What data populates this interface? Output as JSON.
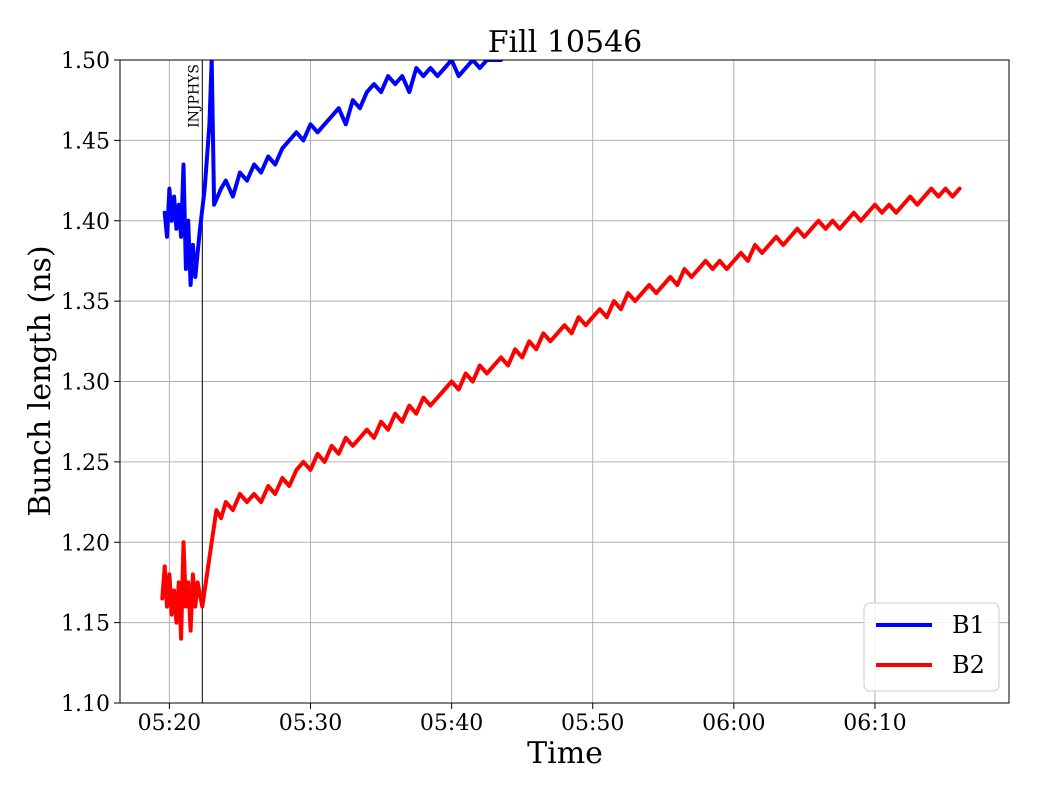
{
  "chart_data": {
    "type": "line",
    "title": "Fill 10546",
    "xlabel": "Time",
    "ylabel": "Bunch length (ns)",
    "xlim": [
      "05:16:30",
      "06:19:30"
    ],
    "ylim": [
      1.1,
      1.5
    ],
    "x_ticks": [
      "05:20",
      "05:30",
      "05:40",
      "05:50",
      "06:00",
      "06:10"
    ],
    "y_ticks": [
      "1.10",
      "1.15",
      "1.20",
      "1.25",
      "1.30",
      "1.35",
      "1.40",
      "1.45",
      "1.50"
    ],
    "grid": true,
    "legend": {
      "position": "bottom-right"
    },
    "annotations": [
      {
        "text": "INJPHYS",
        "x": "05:22:20"
      }
    ],
    "series": [
      {
        "name": "B1",
        "color": "#0000ff",
        "points": [
          [
            "05:19:40",
            1.405
          ],
          [
            "05:19:50",
            1.39
          ],
          [
            "05:20:00",
            1.42
          ],
          [
            "05:20:10",
            1.4
          ],
          [
            "05:20:20",
            1.415
          ],
          [
            "05:20:30",
            1.395
          ],
          [
            "05:20:40",
            1.41
          ],
          [
            "05:20:50",
            1.39
          ],
          [
            "05:21:00",
            1.435
          ],
          [
            "05:21:10",
            1.37
          ],
          [
            "05:21:20",
            1.4
          ],
          [
            "05:21:30",
            1.36
          ],
          [
            "05:21:40",
            1.385
          ],
          [
            "05:21:50",
            1.365
          ],
          [
            "05:22:00",
            1.38
          ],
          [
            "05:22:10",
            1.395
          ],
          [
            "05:22:30",
            1.42
          ],
          [
            "05:22:50",
            1.46
          ],
          [
            "05:23:00",
            1.5
          ],
          [
            "05:23:10",
            1.41
          ],
          [
            "05:23:40",
            1.42
          ],
          [
            "05:24:00",
            1.425
          ],
          [
            "05:24:30",
            1.415
          ],
          [
            "05:25:00",
            1.43
          ],
          [
            "05:25:30",
            1.425
          ],
          [
            "05:26:00",
            1.435
          ],
          [
            "05:26:30",
            1.43
          ],
          [
            "05:27:00",
            1.44
          ],
          [
            "05:27:30",
            1.435
          ],
          [
            "05:28:00",
            1.445
          ],
          [
            "05:28:30",
            1.45
          ],
          [
            "05:29:00",
            1.455
          ],
          [
            "05:29:30",
            1.45
          ],
          [
            "05:30:00",
            1.46
          ],
          [
            "05:30:30",
            1.455
          ],
          [
            "05:31:00",
            1.46
          ],
          [
            "05:31:30",
            1.465
          ],
          [
            "05:32:00",
            1.47
          ],
          [
            "05:32:30",
            1.46
          ],
          [
            "05:33:00",
            1.475
          ],
          [
            "05:33:30",
            1.47
          ],
          [
            "05:34:00",
            1.48
          ],
          [
            "05:34:30",
            1.485
          ],
          [
            "05:35:00",
            1.48
          ],
          [
            "05:35:30",
            1.49
          ],
          [
            "05:36:00",
            1.485
          ],
          [
            "05:36:30",
            1.49
          ],
          [
            "05:37:00",
            1.48
          ],
          [
            "05:37:30",
            1.495
          ],
          [
            "05:38:00",
            1.49
          ],
          [
            "05:38:30",
            1.495
          ],
          [
            "05:39:00",
            1.49
          ],
          [
            "05:39:30",
            1.495
          ],
          [
            "05:40:00",
            1.5
          ],
          [
            "05:40:30",
            1.49
          ],
          [
            "05:41:00",
            1.495
          ],
          [
            "05:41:30",
            1.5
          ],
          [
            "05:42:00",
            1.495
          ],
          [
            "05:42:30",
            1.5
          ],
          [
            "05:43:00",
            1.5
          ],
          [
            "05:43:30",
            1.5
          ]
        ]
      },
      {
        "name": "B2",
        "color": "#ff0000",
        "points": [
          [
            "05:19:30",
            1.165
          ],
          [
            "05:19:40",
            1.185
          ],
          [
            "05:19:50",
            1.16
          ],
          [
            "05:20:00",
            1.18
          ],
          [
            "05:20:10",
            1.155
          ],
          [
            "05:20:20",
            1.17
          ],
          [
            "05:20:30",
            1.15
          ],
          [
            "05:20:40",
            1.175
          ],
          [
            "05:20:50",
            1.14
          ],
          [
            "05:21:00",
            1.2
          ],
          [
            "05:21:10",
            1.16
          ],
          [
            "05:21:20",
            1.175
          ],
          [
            "05:21:30",
            1.145
          ],
          [
            "05:21:40",
            1.18
          ],
          [
            "05:21:50",
            1.16
          ],
          [
            "05:22:00",
            1.175
          ],
          [
            "05:22:20",
            1.16
          ],
          [
            "05:23:20",
            1.22
          ],
          [
            "05:23:40",
            1.215
          ],
          [
            "05:24:00",
            1.225
          ],
          [
            "05:24:30",
            1.22
          ],
          [
            "05:25:00",
            1.23
          ],
          [
            "05:25:30",
            1.225
          ],
          [
            "05:26:00",
            1.23
          ],
          [
            "05:26:30",
            1.225
          ],
          [
            "05:27:00",
            1.235
          ],
          [
            "05:27:30",
            1.23
          ],
          [
            "05:28:00",
            1.24
          ],
          [
            "05:28:30",
            1.235
          ],
          [
            "05:29:00",
            1.245
          ],
          [
            "05:29:30",
            1.25
          ],
          [
            "05:30:00",
            1.245
          ],
          [
            "05:30:30",
            1.255
          ],
          [
            "05:31:00",
            1.25
          ],
          [
            "05:31:30",
            1.26
          ],
          [
            "05:32:00",
            1.255
          ],
          [
            "05:32:30",
            1.265
          ],
          [
            "05:33:00",
            1.26
          ],
          [
            "05:33:30",
            1.265
          ],
          [
            "05:34:00",
            1.27
          ],
          [
            "05:34:30",
            1.265
          ],
          [
            "05:35:00",
            1.275
          ],
          [
            "05:35:30",
            1.27
          ],
          [
            "05:36:00",
            1.28
          ],
          [
            "05:36:30",
            1.275
          ],
          [
            "05:37:00",
            1.285
          ],
          [
            "05:37:30",
            1.28
          ],
          [
            "05:38:00",
            1.29
          ],
          [
            "05:38:30",
            1.285
          ],
          [
            "05:39:00",
            1.29
          ],
          [
            "05:39:30",
            1.295
          ],
          [
            "05:40:00",
            1.3
          ],
          [
            "05:40:30",
            1.295
          ],
          [
            "05:41:00",
            1.305
          ],
          [
            "05:41:30",
            1.3
          ],
          [
            "05:42:00",
            1.31
          ],
          [
            "05:42:30",
            1.305
          ],
          [
            "05:43:00",
            1.31
          ],
          [
            "05:43:30",
            1.315
          ],
          [
            "05:44:00",
            1.31
          ],
          [
            "05:44:30",
            1.32
          ],
          [
            "05:45:00",
            1.315
          ],
          [
            "05:45:30",
            1.325
          ],
          [
            "05:46:00",
            1.32
          ],
          [
            "05:46:30",
            1.33
          ],
          [
            "05:47:00",
            1.325
          ],
          [
            "05:47:30",
            1.33
          ],
          [
            "05:48:00",
            1.335
          ],
          [
            "05:48:30",
            1.33
          ],
          [
            "05:49:00",
            1.34
          ],
          [
            "05:49:30",
            1.335
          ],
          [
            "05:50:00",
            1.34
          ],
          [
            "05:50:30",
            1.345
          ],
          [
            "05:51:00",
            1.34
          ],
          [
            "05:51:30",
            1.35
          ],
          [
            "05:52:00",
            1.345
          ],
          [
            "05:52:30",
            1.355
          ],
          [
            "05:53:00",
            1.35
          ],
          [
            "05:53:30",
            1.355
          ],
          [
            "05:54:00",
            1.36
          ],
          [
            "05:54:30",
            1.355
          ],
          [
            "05:55:00",
            1.36
          ],
          [
            "05:55:30",
            1.365
          ],
          [
            "05:56:00",
            1.36
          ],
          [
            "05:56:30",
            1.37
          ],
          [
            "05:57:00",
            1.365
          ],
          [
            "05:57:30",
            1.37
          ],
          [
            "05:58:00",
            1.375
          ],
          [
            "05:58:30",
            1.37
          ],
          [
            "05:59:00",
            1.375
          ],
          [
            "05:59:30",
            1.37
          ],
          [
            "06:00:00",
            1.375
          ],
          [
            "06:00:30",
            1.38
          ],
          [
            "06:01:00",
            1.375
          ],
          [
            "06:01:30",
            1.385
          ],
          [
            "06:02:00",
            1.38
          ],
          [
            "06:02:30",
            1.385
          ],
          [
            "06:03:00",
            1.39
          ],
          [
            "06:03:30",
            1.385
          ],
          [
            "06:04:00",
            1.39
          ],
          [
            "06:04:30",
            1.395
          ],
          [
            "06:05:00",
            1.39
          ],
          [
            "06:05:30",
            1.395
          ],
          [
            "06:06:00",
            1.4
          ],
          [
            "06:06:30",
            1.395
          ],
          [
            "06:07:00",
            1.4
          ],
          [
            "06:07:30",
            1.395
          ],
          [
            "06:08:00",
            1.4
          ],
          [
            "06:08:30",
            1.405
          ],
          [
            "06:09:00",
            1.4
          ],
          [
            "06:09:30",
            1.405
          ],
          [
            "06:10:00",
            1.41
          ],
          [
            "06:10:30",
            1.405
          ],
          [
            "06:11:00",
            1.41
          ],
          [
            "06:11:30",
            1.405
          ],
          [
            "06:12:00",
            1.41
          ],
          [
            "06:12:30",
            1.415
          ],
          [
            "06:13:00",
            1.41
          ],
          [
            "06:13:30",
            1.415
          ],
          [
            "06:14:00",
            1.42
          ],
          [
            "06:14:30",
            1.415
          ],
          [
            "06:15:00",
            1.42
          ],
          [
            "06:15:30",
            1.415
          ],
          [
            "06:16:00",
            1.42
          ]
        ]
      }
    ]
  }
}
